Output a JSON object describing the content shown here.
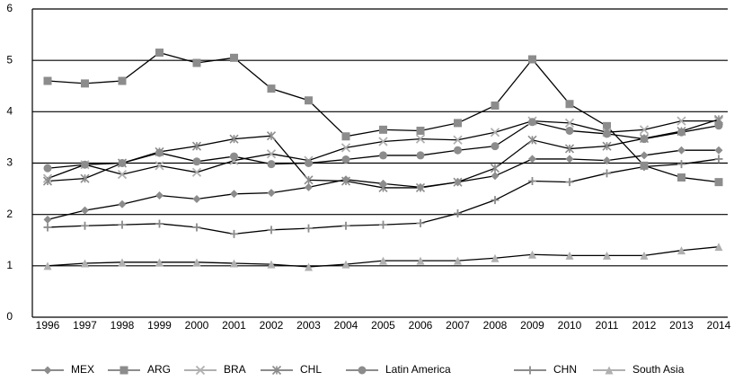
{
  "chart_data": {
    "type": "line",
    "categories": [
      "1996",
      "1997",
      "1998",
      "1999",
      "2000",
      "2001",
      "2002",
      "2003",
      "2004",
      "2005",
      "2006",
      "2007",
      "2008",
      "2009",
      "2010",
      "2011",
      "2012",
      "2013",
      "2014"
    ],
    "ylim": [
      0,
      6
    ],
    "yticks": [
      0,
      1,
      2,
      3,
      4,
      5,
      6
    ],
    "grid": true,
    "legend": "bottom",
    "series": [
      {
        "name": "MEX",
        "color": "#000000",
        "marker": "diamond",
        "marker_color": "#8c8c8c",
        "values": [
          1.9,
          2.08,
          2.2,
          2.37,
          2.3,
          2.4,
          2.42,
          2.53,
          2.68,
          2.6,
          2.53,
          2.63,
          2.75,
          3.08,
          3.08,
          3.05,
          3.15,
          3.25,
          3.25
        ]
      },
      {
        "name": "ARG",
        "color": "#000000",
        "marker": "square",
        "marker_color": "#8c8c8c",
        "values": [
          4.6,
          4.55,
          4.6,
          5.15,
          4.95,
          5.05,
          4.45,
          4.22,
          3.52,
          3.65,
          3.63,
          3.78,
          4.12,
          5.02,
          4.15,
          3.72,
          2.95,
          2.72,
          2.63
        ]
      },
      {
        "name": "BRA",
        "color": "#000000",
        "marker": "x",
        "marker_color": "#b0b0b0",
        "values": [
          2.7,
          2.97,
          2.78,
          2.95,
          2.82,
          3.05,
          3.18,
          3.05,
          3.3,
          3.42,
          3.47,
          3.45,
          3.6,
          3.82,
          3.78,
          3.6,
          3.65,
          3.82,
          3.82
        ]
      },
      {
        "name": "CHL",
        "color": "#000000",
        "marker": "asterisk",
        "marker_color": "#8c8c8c",
        "values": [
          2.65,
          2.7,
          3.0,
          3.22,
          3.33,
          3.47,
          3.53,
          2.67,
          2.65,
          2.52,
          2.52,
          2.63,
          2.9,
          3.45,
          3.28,
          3.33,
          3.48,
          3.62,
          3.85
        ]
      },
      {
        "name": "Latin America",
        "color": "#000000",
        "marker": "circle",
        "marker_color": "#8c8c8c",
        "values": [
          2.9,
          2.97,
          3.0,
          3.2,
          3.03,
          3.13,
          2.98,
          3.0,
          3.07,
          3.15,
          3.15,
          3.25,
          3.33,
          3.8,
          3.63,
          3.57,
          3.47,
          3.6,
          3.73
        ]
      },
      {
        "name": "CHN",
        "color": "#000000",
        "marker": "plus",
        "marker_color": "#8c8c8c",
        "values": [
          1.75,
          1.78,
          1.8,
          1.82,
          1.75,
          1.62,
          1.7,
          1.73,
          1.78,
          1.8,
          1.83,
          2.02,
          2.28,
          2.65,
          2.63,
          2.8,
          2.93,
          2.98,
          3.08
        ]
      },
      {
        "name": "South Asia",
        "color": "#000000",
        "marker": "triangle",
        "marker_color": "#b0b0b0",
        "values": [
          1.0,
          1.05,
          1.07,
          1.07,
          1.07,
          1.05,
          1.03,
          0.98,
          1.03,
          1.1,
          1.1,
          1.1,
          1.15,
          1.22,
          1.2,
          1.2,
          1.2,
          1.3,
          1.37
        ]
      }
    ]
  }
}
